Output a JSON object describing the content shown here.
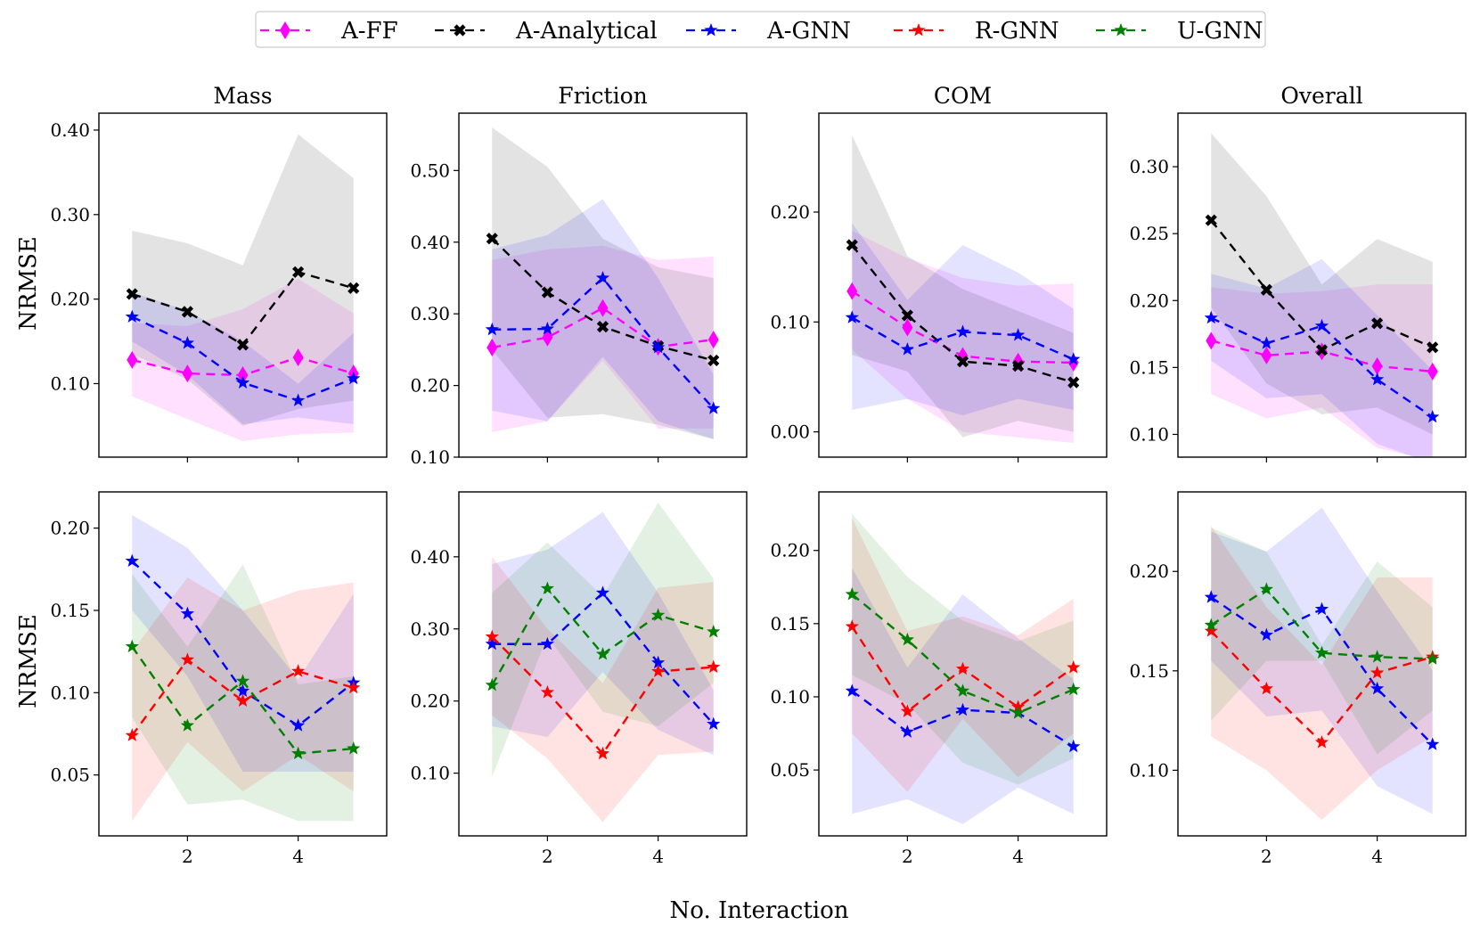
{
  "legend": [
    {
      "name": "A-FF",
      "color": "#ff00ff",
      "marker": "diamond"
    },
    {
      "name": "A-Analytical",
      "color": "#000000",
      "marker": "x"
    },
    {
      "name": "A-GNN",
      "color": "#0000ff",
      "marker": "star"
    },
    {
      "name": "R-GNN",
      "color": "#ff0000",
      "marker": "star"
    },
    {
      "name": "U-GNN",
      "color": "#008000",
      "marker": "star"
    }
  ],
  "xlabel": "No. Interaction",
  "ylabel": "NRMSE",
  "chart_data": [
    {
      "type": "line",
      "title": "Mass",
      "row": 0,
      "col": 0,
      "x": [
        1,
        2,
        3,
        4,
        5
      ],
      "xlim": [
        0.4,
        5.6
      ],
      "xticks": [
        "2",
        "4"
      ],
      "xtick_values": [
        2,
        4
      ],
      "ylim": [
        0.013,
        0.42
      ],
      "yticks": [
        "0.10",
        "0.20",
        "0.30",
        "0.40"
      ],
      "ytick_values": [
        0.1,
        0.2,
        0.3,
        0.4
      ],
      "series": [
        {
          "name": "A-FF",
          "values": [
            0.128,
            0.112,
            0.11,
            0.131,
            0.112
          ],
          "band_low": [
            0.085,
            0.058,
            0.032,
            0.04,
            0.042
          ],
          "band_high": [
            0.172,
            0.168,
            0.188,
            0.224,
            0.183
          ]
        },
        {
          "name": "A-Analytical",
          "values": [
            0.206,
            0.185,
            0.146,
            0.232,
            0.213
          ],
          "band_low": [
            0.135,
            0.105,
            0.05,
            0.07,
            0.08
          ],
          "band_high": [
            0.281,
            0.266,
            0.24,
            0.395,
            0.343
          ]
        },
        {
          "name": "A-GNN",
          "values": [
            0.179,
            0.148,
            0.101,
            0.08,
            0.106
          ],
          "band_low": [
            0.15,
            0.11,
            0.052,
            0.06,
            0.052
          ],
          "band_high": [
            0.208,
            0.186,
            0.15,
            0.1,
            0.16
          ]
        }
      ]
    },
    {
      "type": "line",
      "title": "Friction",
      "row": 0,
      "col": 1,
      "x": [
        1,
        2,
        3,
        4,
        5
      ],
      "xlim": [
        0.4,
        5.6
      ],
      "xticks": [
        "2",
        "4"
      ],
      "xtick_values": [
        2,
        4
      ],
      "ylim": [
        0.1,
        0.58
      ],
      "yticks": [
        "0.10",
        "0.20",
        "0.30",
        "0.40",
        "0.50"
      ],
      "ytick_values": [
        0.1,
        0.2,
        0.3,
        0.4,
        0.5
      ],
      "series": [
        {
          "name": "A-FF",
          "values": [
            0.253,
            0.267,
            0.308,
            0.254,
            0.264
          ],
          "band_low": [
            0.135,
            0.15,
            0.235,
            0.14,
            0.14
          ],
          "band_high": [
            0.375,
            0.39,
            0.395,
            0.375,
            0.38
          ]
        },
        {
          "name": "A-Analytical",
          "values": [
            0.405,
            0.33,
            0.282,
            0.255,
            0.235
          ],
          "band_low": [
            0.25,
            0.155,
            0.16,
            0.145,
            0.125
          ],
          "band_high": [
            0.56,
            0.505,
            0.405,
            0.365,
            0.35
          ]
        },
        {
          "name": "A-GNN",
          "values": [
            0.278,
            0.279,
            0.35,
            0.253,
            0.168
          ],
          "band_low": [
            0.165,
            0.15,
            0.24,
            0.15,
            0.125
          ],
          "band_high": [
            0.39,
            0.41,
            0.46,
            0.35,
            0.215
          ]
        }
      ]
    },
    {
      "type": "line",
      "title": "COM",
      "row": 0,
      "col": 2,
      "x": [
        1,
        2,
        3,
        4,
        5
      ],
      "xlim": [
        0.4,
        5.6
      ],
      "xticks": [
        "2",
        "4"
      ],
      "xtick_values": [
        2,
        4
      ],
      "ylim": [
        -0.023,
        0.29
      ],
      "yticks": [
        "0.00",
        "0.10",
        "0.20"
      ],
      "ytick_values": [
        0.0,
        0.1,
        0.2
      ],
      "series": [
        {
          "name": "A-FF",
          "values": [
            0.128,
            0.095,
            0.069,
            0.064,
            0.063
          ],
          "band_low": [
            0.075,
            0.03,
            0.0,
            -0.005,
            -0.01
          ],
          "band_high": [
            0.183,
            0.158,
            0.14,
            0.133,
            0.135
          ]
        },
        {
          "name": "A-Analytical",
          "values": [
            0.17,
            0.106,
            0.064,
            0.06,
            0.045
          ],
          "band_low": [
            0.07,
            0.055,
            -0.005,
            0.01,
            0.0
          ],
          "band_high": [
            0.27,
            0.16,
            0.13,
            0.11,
            0.09
          ]
        },
        {
          "name": "A-GNN",
          "values": [
            0.104,
            0.075,
            0.091,
            0.088,
            0.066
          ],
          "band_low": [
            0.02,
            0.03,
            0.015,
            0.03,
            0.02
          ],
          "band_high": [
            0.19,
            0.12,
            0.17,
            0.145,
            0.112
          ]
        }
      ]
    },
    {
      "type": "line",
      "title": "Overall",
      "row": 0,
      "col": 3,
      "x": [
        1,
        2,
        3,
        4,
        5
      ],
      "xlim": [
        0.4,
        5.6
      ],
      "xticks": [
        "2",
        "4"
      ],
      "xtick_values": [
        2,
        4
      ],
      "ylim": [
        0.083,
        0.34
      ],
      "yticks": [
        "0.10",
        "0.15",
        "0.20",
        "0.25",
        "0.30"
      ],
      "ytick_values": [
        0.1,
        0.15,
        0.2,
        0.25,
        0.3
      ],
      "series": [
        {
          "name": "A-FF",
          "values": [
            0.17,
            0.159,
            0.162,
            0.151,
            0.147
          ],
          "band_low": [
            0.13,
            0.112,
            0.12,
            0.09,
            0.08
          ],
          "band_high": [
            0.21,
            0.205,
            0.207,
            0.212,
            0.212
          ]
        },
        {
          "name": "A-Analytical",
          "values": [
            0.26,
            0.208,
            0.163,
            0.183,
            0.165
          ],
          "band_low": [
            0.195,
            0.138,
            0.115,
            0.12,
            0.1
          ],
          "band_high": [
            0.325,
            0.278,
            0.212,
            0.246,
            0.229
          ]
        },
        {
          "name": "A-GNN",
          "values": [
            0.187,
            0.168,
            0.181,
            0.141,
            0.113
          ],
          "band_low": [
            0.155,
            0.127,
            0.13,
            0.093,
            0.078
          ],
          "band_high": [
            0.22,
            0.209,
            0.231,
            0.189,
            0.148
          ]
        }
      ]
    },
    {
      "type": "line",
      "title": "",
      "row": 1,
      "col": 0,
      "x": [
        1,
        2,
        3,
        4,
        5
      ],
      "xlim": [
        0.4,
        5.6
      ],
      "xticks": [
        "2",
        "4"
      ],
      "xtick_values": [
        2,
        4
      ],
      "ylim": [
        0.013,
        0.222
      ],
      "yticks": [
        "0.05",
        "0.10",
        "0.15",
        "0.20"
      ],
      "ytick_values": [
        0.05,
        0.1,
        0.15,
        0.2
      ],
      "series": [
        {
          "name": "A-GNN",
          "values": [
            0.18,
            0.148,
            0.101,
            0.08,
            0.106
          ],
          "band_low": [
            0.15,
            0.11,
            0.052,
            0.052,
            0.052
          ],
          "band_high": [
            0.208,
            0.188,
            0.15,
            0.108,
            0.16
          ]
        },
        {
          "name": "R-GNN",
          "values": [
            0.074,
            0.12,
            0.095,
            0.113,
            0.103
          ],
          "band_low": [
            0.022,
            0.07,
            0.04,
            0.062,
            0.04
          ],
          "band_high": [
            0.125,
            0.17,
            0.15,
            0.162,
            0.167
          ]
        },
        {
          "name": "U-GNN",
          "values": [
            0.128,
            0.08,
            0.107,
            0.063,
            0.066
          ],
          "band_low": [
            0.085,
            0.032,
            0.035,
            0.022,
            0.022
          ],
          "band_high": [
            0.172,
            0.128,
            0.178,
            0.105,
            0.11
          ]
        }
      ]
    },
    {
      "type": "line",
      "title": "",
      "row": 1,
      "col": 1,
      "x": [
        1,
        2,
        3,
        4,
        5
      ],
      "xlim": [
        0.4,
        5.6
      ],
      "xticks": [
        "2",
        "4"
      ],
      "xtick_values": [
        2,
        4
      ],
      "ylim": [
        0.013,
        0.49
      ],
      "yticks": [
        "0.10",
        "0.20",
        "0.30",
        "0.40"
      ],
      "ytick_values": [
        0.1,
        0.2,
        0.3,
        0.4
      ],
      "series": [
        {
          "name": "A-GNN",
          "values": [
            0.279,
            0.279,
            0.35,
            0.253,
            0.168
          ],
          "band_low": [
            0.165,
            0.15,
            0.24,
            0.16,
            0.125
          ],
          "band_high": [
            0.39,
            0.41,
            0.462,
            0.35,
            0.215
          ]
        },
        {
          "name": "R-GNN",
          "values": [
            0.289,
            0.212,
            0.127,
            0.241,
            0.247
          ],
          "band_low": [
            0.18,
            0.12,
            0.032,
            0.125,
            0.13
          ],
          "band_high": [
            0.4,
            0.3,
            0.225,
            0.357,
            0.365
          ]
        },
        {
          "name": "U-GNN",
          "values": [
            0.222,
            0.356,
            0.265,
            0.319,
            0.296
          ],
          "band_low": [
            0.095,
            0.29,
            0.185,
            0.165,
            0.225
          ],
          "band_high": [
            0.35,
            0.42,
            0.345,
            0.475,
            0.37
          ]
        }
      ]
    },
    {
      "type": "line",
      "title": "",
      "row": 1,
      "col": 2,
      "x": [
        1,
        2,
        3,
        4,
        5
      ],
      "xlim": [
        0.4,
        5.6
      ],
      "xticks": [
        "2",
        "4"
      ],
      "xtick_values": [
        2,
        4
      ],
      "ylim": [
        0.005,
        0.24
      ],
      "yticks": [
        "0.05",
        "0.10",
        "0.15",
        "0.20"
      ],
      "ytick_values": [
        0.05,
        0.1,
        0.15,
        0.2
      ],
      "series": [
        {
          "name": "A-GNN",
          "values": [
            0.104,
            0.076,
            0.091,
            0.089,
            0.066
          ],
          "band_low": [
            0.02,
            0.03,
            0.013,
            0.038,
            0.02
          ],
          "band_high": [
            0.188,
            0.12,
            0.17,
            0.14,
            0.112
          ]
        },
        {
          "name": "R-GNN",
          "values": [
            0.148,
            0.09,
            0.119,
            0.093,
            0.12
          ],
          "band_low": [
            0.075,
            0.035,
            0.085,
            0.045,
            0.075
          ],
          "band_high": [
            0.222,
            0.145,
            0.155,
            0.142,
            0.167
          ]
        },
        {
          "name": "U-GNN",
          "values": [
            0.17,
            0.139,
            0.104,
            0.089,
            0.105
          ],
          "band_low": [
            0.115,
            0.095,
            0.055,
            0.04,
            0.058
          ],
          "band_high": [
            0.225,
            0.182,
            0.152,
            0.138,
            0.152
          ]
        }
      ]
    },
    {
      "type": "line",
      "title": "",
      "row": 1,
      "col": 3,
      "x": [
        1,
        2,
        3,
        4,
        5
      ],
      "xlim": [
        0.4,
        5.6
      ],
      "xticks": [
        "2",
        "4"
      ],
      "xtick_values": [
        2,
        4
      ],
      "ylim": [
        0.067,
        0.24
      ],
      "yticks": [
        "0.10",
        "0.15",
        "0.20"
      ],
      "ytick_values": [
        0.1,
        0.15,
        0.2
      ],
      "series": [
        {
          "name": "A-GNN",
          "values": [
            0.187,
            0.168,
            0.181,
            0.141,
            0.113
          ],
          "band_low": [
            0.155,
            0.127,
            0.13,
            0.092,
            0.078
          ],
          "band_high": [
            0.22,
            0.21,
            0.232,
            0.19,
            0.15
          ]
        },
        {
          "name": "R-GNN",
          "values": [
            0.17,
            0.141,
            0.114,
            0.149,
            0.157
          ],
          "band_low": [
            0.117,
            0.1,
            0.075,
            0.1,
            0.117
          ],
          "band_high": [
            0.223,
            0.182,
            0.153,
            0.197,
            0.197
          ]
        },
        {
          "name": "U-GNN",
          "values": [
            0.173,
            0.191,
            0.159,
            0.157,
            0.156
          ],
          "band_low": [
            0.125,
            0.155,
            0.155,
            0.108,
            0.13
          ],
          "band_high": [
            0.222,
            0.21,
            0.163,
            0.205,
            0.182
          ]
        }
      ]
    }
  ]
}
